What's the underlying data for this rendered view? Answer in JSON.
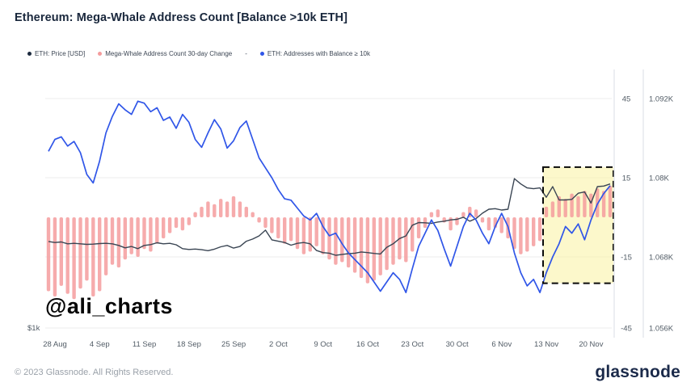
{
  "header": {
    "title": "Ethereum: Mega-Whale Address Count [Balance >10k ETH]"
  },
  "legend": [
    {
      "label": "ETH: Price [USD]",
      "color": "#1d2b3f"
    },
    {
      "label": "Mega-Whale Address Count 30-day Change",
      "color": "#f49c9d"
    },
    {
      "label": "-",
      "color": null
    },
    {
      "label": "ETH: Addresses with Balance ≥ 10k",
      "color": "#3056e8"
    }
  ],
  "watermark": "@ali_charts",
  "footer": {
    "copyright": "© 2023 Glassnode. All Rights Reserved.",
    "brand": "glassnode"
  },
  "chart_data": {
    "type": "mixed",
    "title": "Ethereum: Mega-Whale Address Count [Balance >10k ETH]",
    "x_start_label": "28 Aug",
    "x_end_label": "20 Nov",
    "n_points": 89,
    "x_interval": "daily",
    "x_tick_labels": [
      "28 Aug",
      "4 Sep",
      "11 Sep",
      "18 Sep",
      "25 Sep",
      "2 Oct",
      "9 Oct",
      "16 Oct",
      "23 Oct",
      "30 Oct",
      "6 Nov",
      "13 Nov",
      "20 Nov"
    ],
    "x_tick_indices": [
      0,
      7,
      14,
      21,
      28,
      35,
      42,
      49,
      56,
      63,
      70,
      77,
      84
    ],
    "axes": {
      "change": {
        "side": "right-inner",
        "tick_labels": [
          "45",
          "15",
          "-15",
          "-45"
        ],
        "tick_values": [
          45,
          15,
          -15,
          -45
        ]
      },
      "addresses": {
        "side": "right-outer",
        "tick_labels": [
          "1.092K",
          "1.08K",
          "1.068K",
          "1.056K"
        ],
        "tick_values": [
          1.092,
          1.08,
          1.068,
          1.056
        ]
      },
      "price": {
        "side": "left",
        "tick_labels": [
          "$1k"
        ],
        "tick_values": [
          1000
        ]
      }
    },
    "series": [
      {
        "name": "ETH: Price [USD]",
        "type": "line",
        "axis": "price",
        "color": "#3a4553",
        "values": [
          1650,
          1642,
          1646,
          1632,
          1636,
          1632,
          1628,
          1630,
          1634,
          1636,
          1632,
          1620,
          1602,
          1612,
          1596,
          1620,
          1626,
          1640,
          1632,
          1636,
          1625,
          1596,
          1590,
          1593,
          1588,
          1581,
          1592,
          1610,
          1620,
          1600,
          1612,
          1652,
          1668,
          1692,
          1735,
          1662,
          1652,
          1642,
          1622,
          1636,
          1642,
          1632,
          1582,
          1566,
          1562,
          1546,
          1553,
          1558,
          1562,
          1571,
          1566,
          1560,
          1556,
          1606,
          1632,
          1672,
          1692,
          1772,
          1792,
          1790,
          1786,
          1796,
          1802,
          1812,
          1816,
          1832,
          1802,
          1822,
          1862,
          1892,
          1896,
          1886,
          1892,
          2122,
          2082,
          2052,
          2046,
          2052,
          1982,
          2062,
          1962,
          1962,
          1966,
          2012,
          2022,
          1938,
          2062,
          2066,
          2082
        ]
      },
      {
        "name": "Mega-Whale Address Count 30-day Change",
        "type": "bar",
        "axis": "change",
        "color": "#f49c9d",
        "values": [
          -28,
          -30,
          -26,
          -29,
          -31,
          -27,
          -24,
          -30,
          -28,
          -22,
          -18,
          -19,
          -16,
          -14,
          -15,
          -12,
          -13,
          -10,
          -8,
          -6,
          -4,
          -5,
          -3,
          2,
          4,
          6,
          5,
          7,
          6,
          8,
          6,
          4,
          2,
          -2,
          -4,
          -6,
          -8,
          -10,
          -9,
          -12,
          -14,
          -13,
          -11,
          -14,
          -16,
          -18,
          -17,
          -19,
          -21,
          -23,
          -25,
          -24,
          -22,
          -20,
          -18,
          -16,
          -17,
          -13,
          -8,
          -4,
          2,
          3,
          -2,
          -5,
          -3,
          2,
          4,
          3,
          -2,
          -5,
          -4,
          -6,
          -8,
          -12,
          -14,
          -13,
          -11,
          -9,
          4,
          6,
          8,
          7,
          9,
          8,
          10,
          9,
          11,
          10,
          12
        ]
      },
      {
        "name": "ETH: Addresses with Balance ≥ 10k",
        "type": "line",
        "axis": "addresses",
        "color": "#3056e8",
        "values": [
          1.084,
          1.0858,
          1.0862,
          1.0848,
          1.0855,
          1.0838,
          1.0805,
          1.0792,
          1.0825,
          1.0868,
          1.0893,
          1.0912,
          1.0903,
          1.0896,
          1.0916,
          1.0913,
          1.09,
          1.0906,
          1.0887,
          1.0892,
          1.0875,
          1.0896,
          1.0884,
          1.0858,
          1.0846,
          1.0868,
          1.0888,
          1.0874,
          1.0845,
          1.0856,
          1.0876,
          1.0886,
          1.0858,
          1.083,
          1.0815,
          1.08,
          1.0782,
          1.0768,
          1.0766,
          1.0754,
          1.0742,
          1.0736,
          1.0746,
          1.0726,
          1.0712,
          1.0716,
          1.07,
          1.0686,
          1.0676,
          1.0666,
          1.0656,
          1.0642,
          1.0628,
          1.0642,
          1.0656,
          1.0646,
          1.0626,
          1.0662,
          1.0696,
          1.0716,
          1.0736,
          1.072,
          1.0692,
          1.0666,
          1.0696,
          1.0726,
          1.0746,
          1.0736,
          1.0716,
          1.07,
          1.0726,
          1.0746,
          1.0726,
          1.0686,
          1.0656,
          1.0636,
          1.0646,
          1.0626,
          1.0656,
          1.068,
          1.07,
          1.0726,
          1.0716,
          1.073,
          1.0706,
          1.0736,
          1.076,
          1.0776,
          1.0788
        ]
      }
    ],
    "highlight_box": {
      "start_index": 78,
      "end_index": 88,
      "top_change_value": 19,
      "bottom_change_value": -25,
      "fill": "#f9f3a0",
      "border": "dashed-black"
    },
    "grid": "horizontal-on",
    "legend_position": "top-left"
  }
}
